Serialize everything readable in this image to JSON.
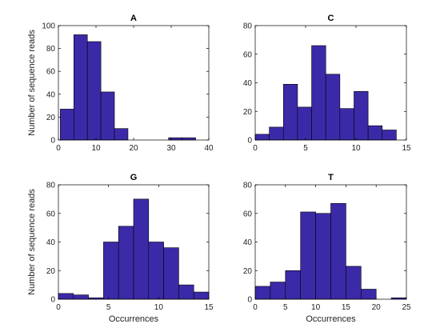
{
  "colors": {
    "bar": "#3b2aa8",
    "edge": "#000000"
  },
  "chart_data": [
    {
      "type": "bar",
      "title": "A",
      "xlabel": "",
      "ylabel": "Number of sequence reads",
      "xlim": [
        0,
        40
      ],
      "ylim": [
        0,
        100
      ],
      "xticks": [
        0,
        10,
        20,
        30,
        40
      ],
      "yticks": [
        0,
        20,
        40,
        60,
        80,
        100
      ],
      "bin_edges": [
        0.5,
        4.1,
        7.7,
        11.3,
        14.9,
        18.5,
        22.1,
        25.7,
        29.3,
        32.9,
        36.5
      ],
      "values": [
        27,
        92,
        86,
        42,
        10,
        0,
        0,
        0,
        2,
        2
      ]
    },
    {
      "type": "bar",
      "title": "C",
      "xlabel": "",
      "ylabel": "",
      "xlim": [
        0,
        15
      ],
      "ylim": [
        0,
        80
      ],
      "xticks": [
        0,
        5,
        10,
        15
      ],
      "yticks": [
        0,
        20,
        40,
        60,
        80
      ],
      "bin_edges": [
        0,
        1.4,
        2.8,
        4.2,
        5.6,
        7.0,
        8.4,
        9.8,
        11.2,
        12.6,
        14.0
      ],
      "values": [
        4,
        9,
        39,
        23,
        66,
        46,
        22,
        34,
        10,
        7
      ]
    },
    {
      "type": "bar",
      "title": "G",
      "xlabel": "Occurrences",
      "ylabel": "Number of sequence reads",
      "xlim": [
        0,
        15
      ],
      "ylim": [
        0,
        80
      ],
      "xticks": [
        0,
        5,
        10,
        15
      ],
      "yticks": [
        0,
        20,
        40,
        60,
        80
      ],
      "bin_edges": [
        0,
        1.5,
        3.0,
        4.5,
        6.0,
        7.5,
        9.0,
        10.5,
        12.0,
        13.5,
        15.0
      ],
      "values": [
        4,
        3,
        1,
        40,
        51,
        70,
        40,
        36,
        10,
        5
      ]
    },
    {
      "type": "bar",
      "title": "T",
      "xlabel": "Occurrences",
      "ylabel": "",
      "xlim": [
        0,
        25
      ],
      "ylim": [
        0,
        80
      ],
      "xticks": [
        0,
        5,
        10,
        15,
        20,
        25
      ],
      "yticks": [
        0,
        20,
        40,
        60,
        80
      ],
      "bin_edges": [
        0,
        2.5,
        5.0,
        7.5,
        10.0,
        12.5,
        15.0,
        17.5,
        20.0,
        22.5,
        25.0
      ],
      "values": [
        9,
        12,
        20,
        61,
        60,
        67,
        23,
        7,
        0,
        1
      ]
    }
  ]
}
